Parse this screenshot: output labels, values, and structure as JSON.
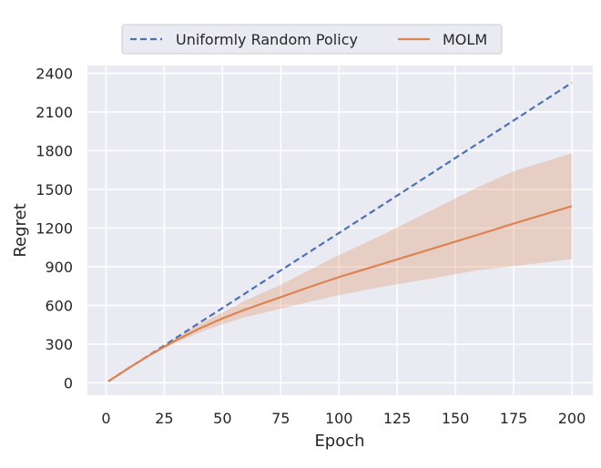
{
  "chart_data": {
    "type": "line",
    "xlabel": "Epoch",
    "ylabel": "Regret",
    "xlim": [
      -8,
      209
    ],
    "ylim": [
      -95,
      2460
    ],
    "xticks": [
      0,
      25,
      50,
      75,
      100,
      125,
      150,
      175,
      200
    ],
    "yticks": [
      0,
      300,
      600,
      900,
      1200,
      1500,
      1800,
      2100,
      2400
    ],
    "grid": true,
    "legend_position": "top-center",
    "x": [
      1,
      10,
      20,
      25,
      30,
      40,
      50,
      60,
      75,
      90,
      100,
      120,
      140,
      160,
      175,
      200
    ],
    "series": [
      {
        "name": "Uniformly Random Policy",
        "style": "dashed",
        "color": "#4c72b0",
        "values": [
          12,
          118,
          232,
          290,
          348,
          465,
          580,
          697,
          872,
          1046,
          1162,
          1394,
          1627,
          1860,
          2034,
          2327
        ]
      },
      {
        "name": "MOLM",
        "style": "solid",
        "color": "#dd8452",
        "values": [
          12,
          118,
          228,
          280,
          330,
          420,
          500,
          570,
          665,
          760,
          820,
          930,
          1040,
          1150,
          1235,
          1370
        ],
        "band_lower": [
          12,
          116,
          222,
          268,
          312,
          390,
          455,
          510,
          575,
          640,
          680,
          750,
          810,
          875,
          905,
          960
        ],
        "band_upper": [
          12,
          120,
          234,
          292,
          348,
          455,
          545,
          640,
          760,
          900,
          990,
          1160,
          1340,
          1520,
          1640,
          1780
        ]
      }
    ]
  }
}
